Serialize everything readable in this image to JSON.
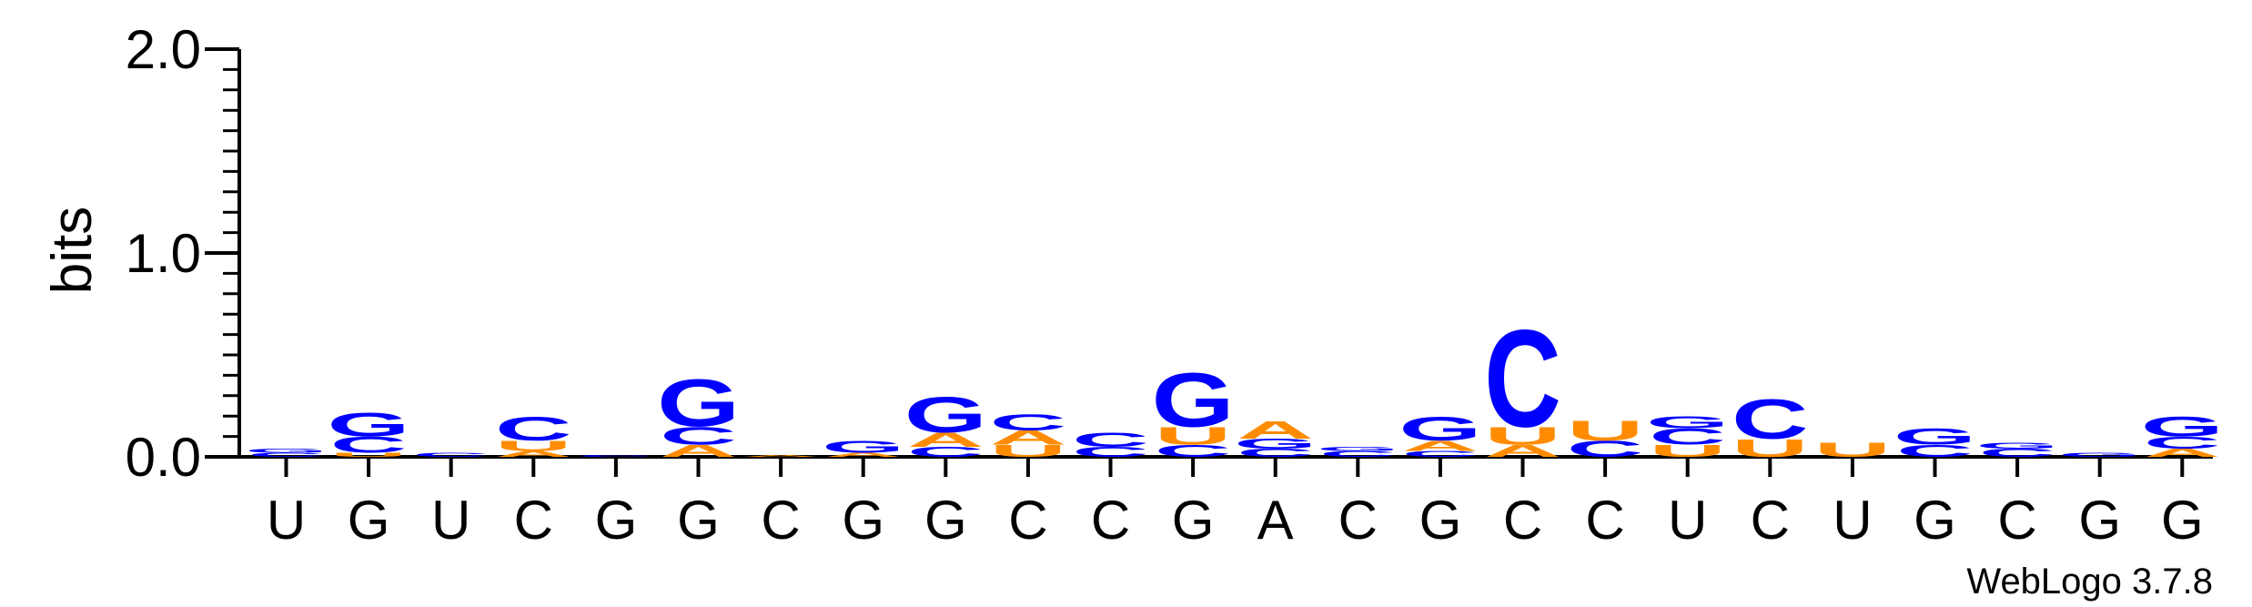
{
  "chart_data": {
    "type": "sequence-logo",
    "ylabel": "bits",
    "ylim": [
      0,
      2.0
    ],
    "yticks": [
      "0.0",
      "1.0",
      "2.0"
    ],
    "xlabels": [
      "U",
      "G",
      "U",
      "C",
      "G",
      "G",
      "C",
      "G",
      "G",
      "C",
      "C",
      "G",
      "A",
      "C",
      "G",
      "C",
      "C",
      "U",
      "C",
      "U",
      "G",
      "C",
      "G",
      "G"
    ],
    "colors": {
      "G": "#0000ff",
      "C": "#0000ff",
      "A": "#ff8c00",
      "U": "#ff8c00"
    },
    "positions": [
      {
        "letters": [
          {
            "l": "C",
            "h": 0.02
          },
          {
            "l": "G",
            "h": 0.02
          }
        ]
      },
      {
        "letters": [
          {
            "l": "U",
            "h": 0.02
          },
          {
            "l": "C",
            "h": 0.08
          },
          {
            "l": "G",
            "h": 0.12
          }
        ]
      },
      {
        "letters": [
          {
            "l": "C",
            "h": 0.02
          }
        ]
      },
      {
        "letters": [
          {
            "l": "A",
            "h": 0.03
          },
          {
            "l": "U",
            "h": 0.05
          },
          {
            "l": "C",
            "h": 0.12
          }
        ]
      },
      {
        "letters": [
          {
            "l": "C",
            "h": 0.01
          }
        ]
      },
      {
        "letters": [
          {
            "l": "A",
            "h": 0.06
          },
          {
            "l": "C",
            "h": 0.09
          },
          {
            "l": "G",
            "h": 0.24
          }
        ]
      },
      {
        "letters": [
          {
            "l": "A",
            "h": 0.01
          }
        ]
      },
      {
        "letters": [
          {
            "l": "A",
            "h": 0.02
          },
          {
            "l": "G",
            "h": 0.06
          }
        ]
      },
      {
        "letters": [
          {
            "l": "C",
            "h": 0.05
          },
          {
            "l": "A",
            "h": 0.07
          },
          {
            "l": "G",
            "h": 0.18
          }
        ]
      },
      {
        "letters": [
          {
            "l": "U",
            "h": 0.06
          },
          {
            "l": "A",
            "h": 0.07
          },
          {
            "l": "C",
            "h": 0.08
          }
        ]
      },
      {
        "letters": [
          {
            "l": "C",
            "h": 0.05
          },
          {
            "l": "C",
            "h": 0.07
          }
        ]
      },
      {
        "letters": [
          {
            "l": "C",
            "h": 0.06
          },
          {
            "l": "U",
            "h": 0.09
          },
          {
            "l": "G",
            "h": 0.27
          }
        ]
      },
      {
        "letters": [
          {
            "l": "C",
            "h": 0.04
          },
          {
            "l": "G",
            "h": 0.05
          },
          {
            "l": "A",
            "h": 0.09
          }
        ]
      },
      {
        "letters": [
          {
            "l": "C",
            "h": 0.03
          },
          {
            "l": "G",
            "h": 0.02
          }
        ]
      },
      {
        "letters": [
          {
            "l": "C",
            "h": 0.03
          },
          {
            "l": "A",
            "h": 0.05
          },
          {
            "l": "G",
            "h": 0.12
          }
        ]
      },
      {
        "letters": [
          {
            "l": "A",
            "h": 0.06
          },
          {
            "l": "U",
            "h": 0.09
          },
          {
            "l": "C",
            "h": 0.49
          }
        ]
      },
      {
        "letters": [
          {
            "l": "C",
            "h": 0.08
          },
          {
            "l": "U",
            "h": 0.1
          }
        ]
      },
      {
        "letters": [
          {
            "l": "U",
            "h": 0.06
          },
          {
            "l": "C",
            "h": 0.08
          },
          {
            "l": "G",
            "h": 0.06
          }
        ]
      },
      {
        "letters": [
          {
            "l": "U",
            "h": 0.09
          },
          {
            "l": "C",
            "h": 0.2
          }
        ]
      },
      {
        "letters": [
          {
            "l": "U",
            "h": 0.07
          }
        ]
      },
      {
        "letters": [
          {
            "l": "C",
            "h": 0.06
          },
          {
            "l": "G",
            "h": 0.08
          }
        ]
      },
      {
        "letters": [
          {
            "l": "C",
            "h": 0.04
          },
          {
            "l": "G",
            "h": 0.03
          }
        ]
      },
      {
        "letters": [
          {
            "l": "G",
            "h": 0.02
          }
        ]
      },
      {
        "letters": [
          {
            "l": "A",
            "h": 0.04
          },
          {
            "l": "C",
            "h": 0.06
          },
          {
            "l": "G",
            "h": 0.1
          }
        ]
      }
    ]
  },
  "footer": {
    "credit": "WebLogo 3.7.8"
  }
}
